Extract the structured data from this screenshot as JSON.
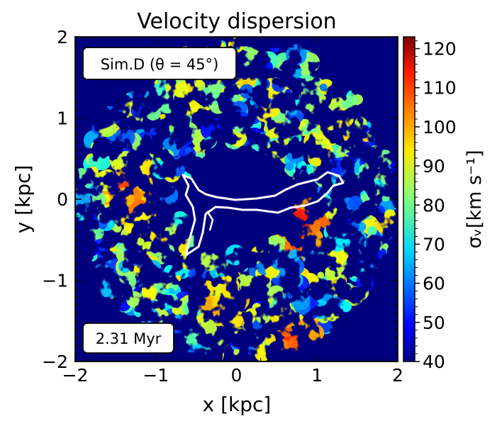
{
  "chart_data": {
    "type": "heatmap",
    "title": "Velocity dispersion",
    "xlabel": "x [kpc]",
    "ylabel": "y [kpc]",
    "xlim": [
      -2,
      2
    ],
    "ylim": [
      -2,
      2
    ],
    "xticks": [
      -2,
      -1,
      0,
      1,
      2
    ],
    "yticks": [
      -2,
      -1,
      0,
      1,
      2
    ],
    "xtick_labels": [
      "−2",
      "−1",
      "0",
      "1",
      "2"
    ],
    "ytick_labels": [
      "−2",
      "−1",
      "0",
      "1",
      "2"
    ],
    "colorbar": {
      "label": "σᵥ[km s⁻¹]",
      "min": 40,
      "max": 123,
      "ticks": [
        40,
        50,
        60,
        70,
        80,
        90,
        100,
        110,
        120
      ],
      "tick_labels": [
        "40",
        "50",
        "60",
        "70",
        "80",
        "90",
        "100",
        "110",
        "120"
      ],
      "colormap": "jet"
    },
    "background_value": 40,
    "disk": {
      "center": [
        0,
        0
      ],
      "radius_kpc": 1.95
    },
    "hot_spots": [
      {
        "x": -1.3,
        "y": 0.1,
        "value": 112
      },
      {
        "x": -1.1,
        "y": -0.3,
        "value": 105
      },
      {
        "x": 0.7,
        "y": -1.8,
        "value": 115
      },
      {
        "x": 1.2,
        "y": 0.9,
        "value": 100
      },
      {
        "x": 0.8,
        "y": -0.3,
        "value": 118
      },
      {
        "x": -0.6,
        "y": 1.4,
        "value": 98
      },
      {
        "x": -0.1,
        "y": -1.3,
        "value": 108
      }
    ],
    "contour_color": "#ffffff",
    "annotations": {
      "sim_label": "Sim.D (θ = 45°)",
      "time_label": "2.31 Myr"
    }
  }
}
